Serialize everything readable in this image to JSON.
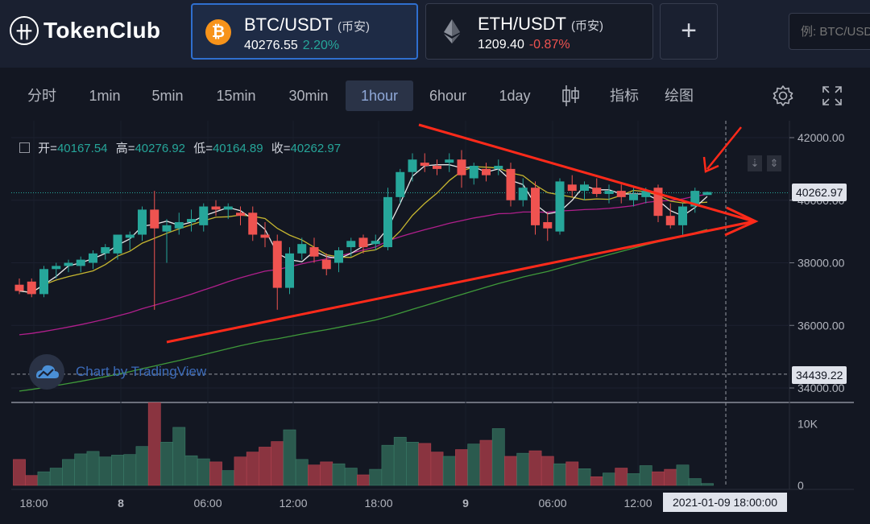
{
  "header": {
    "logo_text": "TokenClub",
    "logo_mark": "卄",
    "pairs": [
      {
        "symbol": "BTC/USDT",
        "exchange": "(币安)",
        "price": "40276.55",
        "change": "2.20%",
        "direction": "up",
        "icon": "bitcoin-icon",
        "color": "#f7931a"
      },
      {
        "symbol": "ETH/USDT",
        "exchange": "(币安)",
        "price": "1209.40",
        "change": "-0.87%",
        "direction": "down",
        "icon": "ethereum-icon"
      }
    ],
    "add_label": "+",
    "search_placeholder": "例: BTC/USDT"
  },
  "toolbar": {
    "intervals": [
      "分时",
      "1min",
      "5min",
      "15min",
      "30min",
      "1hour",
      "6hour",
      "1day"
    ],
    "active_interval": "1hour",
    "indicators_label": "指标",
    "draw_label": "绘图"
  },
  "ohlc": {
    "open_label": "开=",
    "open": "40167.54",
    "high_label": "高=",
    "high": "40276.92",
    "low_label": "低=",
    "low": "40164.89",
    "close_label": "收=",
    "close": "40262.97"
  },
  "price_axis": {
    "ticks": [
      "42000.00",
      "40000.00",
      "38000.00",
      "36000.00",
      "34000.00"
    ],
    "current": "40262.97",
    "dashed_level": "34439.22"
  },
  "volume_axis": {
    "ticks": [
      "10K",
      "0"
    ]
  },
  "time_axis": {
    "ticks": [
      "18:00",
      "8",
      "06:00",
      "12:00",
      "18:00",
      "9",
      "06:00",
      "12:00"
    ],
    "crosshair": "2021-01-09 18:00:00"
  },
  "watermark": "Chart by TradingView",
  "colors": {
    "up": "#26a69a",
    "down": "#ef5350",
    "accent": "#2f6fcf",
    "annotation": "#ff2a1a"
  },
  "chart_data": {
    "type": "candlestick",
    "ylim": [
      33500,
      42600
    ],
    "candles": [
      {
        "o": 37300,
        "h": 37500,
        "l": 37000,
        "c": 37100
      },
      {
        "o": 37400,
        "h": 37500,
        "l": 36900,
        "c": 37000
      },
      {
        "o": 37000,
        "h": 37900,
        "l": 36900,
        "c": 37800
      },
      {
        "o": 37800,
        "h": 38000,
        "l": 37500,
        "c": 37900
      },
      {
        "o": 37900,
        "h": 38100,
        "l": 37700,
        "c": 38000
      },
      {
        "o": 37900,
        "h": 38200,
        "l": 37700,
        "c": 38100
      },
      {
        "o": 38000,
        "h": 38400,
        "l": 37800,
        "c": 38300
      },
      {
        "o": 38300,
        "h": 38600,
        "l": 38100,
        "c": 38500
      },
      {
        "o": 38300,
        "h": 38900,
        "l": 38100,
        "c": 38900
      },
      {
        "o": 38800,
        "h": 39000,
        "l": 38400,
        "c": 38900
      },
      {
        "o": 38900,
        "h": 39800,
        "l": 38700,
        "c": 39700
      },
      {
        "o": 39700,
        "h": 40300,
        "l": 36500,
        "c": 39100
      },
      {
        "o": 39000,
        "h": 39400,
        "l": 38000,
        "c": 39200
      },
      {
        "o": 39100,
        "h": 39600,
        "l": 38900,
        "c": 39300
      },
      {
        "o": 39300,
        "h": 39700,
        "l": 39000,
        "c": 39400
      },
      {
        "o": 39200,
        "h": 39900,
        "l": 39000,
        "c": 39800
      },
      {
        "o": 39800,
        "h": 40000,
        "l": 39500,
        "c": 39700
      },
      {
        "o": 39700,
        "h": 39900,
        "l": 39400,
        "c": 39800
      },
      {
        "o": 39600,
        "h": 39800,
        "l": 39200,
        "c": 39500
      },
      {
        "o": 39600,
        "h": 39800,
        "l": 38700,
        "c": 38900
      },
      {
        "o": 38900,
        "h": 39300,
        "l": 38500,
        "c": 38800
      },
      {
        "o": 38700,
        "h": 38900,
        "l": 36500,
        "c": 37200
      },
      {
        "o": 37200,
        "h": 38500,
        "l": 37000,
        "c": 38300
      },
      {
        "o": 38300,
        "h": 38800,
        "l": 38100,
        "c": 38600
      },
      {
        "o": 38500,
        "h": 38800,
        "l": 38000,
        "c": 38200
      },
      {
        "o": 38100,
        "h": 38300,
        "l": 37600,
        "c": 37800
      },
      {
        "o": 38000,
        "h": 38500,
        "l": 37700,
        "c": 38400
      },
      {
        "o": 38500,
        "h": 38800,
        "l": 38200,
        "c": 38700
      },
      {
        "o": 38800,
        "h": 38900,
        "l": 38300,
        "c": 38500
      },
      {
        "o": 38600,
        "h": 38900,
        "l": 38400,
        "c": 38700
      },
      {
        "o": 38500,
        "h": 40400,
        "l": 38400,
        "c": 40100
      },
      {
        "o": 40100,
        "h": 41000,
        "l": 39900,
        "c": 40900
      },
      {
        "o": 40900,
        "h": 41500,
        "l": 40600,
        "c": 41300
      },
      {
        "o": 41200,
        "h": 41500,
        "l": 40900,
        "c": 41100
      },
      {
        "o": 41100,
        "h": 41300,
        "l": 40800,
        "c": 41000
      },
      {
        "o": 41200,
        "h": 41500,
        "l": 40900,
        "c": 41300
      },
      {
        "o": 41300,
        "h": 41600,
        "l": 40400,
        "c": 40800
      },
      {
        "o": 40700,
        "h": 41200,
        "l": 40500,
        "c": 41100
      },
      {
        "o": 41000,
        "h": 41200,
        "l": 40600,
        "c": 40800
      },
      {
        "o": 41000,
        "h": 41300,
        "l": 40800,
        "c": 41100
      },
      {
        "o": 41000,
        "h": 41200,
        "l": 39800,
        "c": 40000
      },
      {
        "o": 40000,
        "h": 40700,
        "l": 39800,
        "c": 40400
      },
      {
        "o": 40400,
        "h": 40600,
        "l": 38900,
        "c": 39200
      },
      {
        "o": 39300,
        "h": 39600,
        "l": 38700,
        "c": 39100
      },
      {
        "o": 39000,
        "h": 40700,
        "l": 38900,
        "c": 40600
      },
      {
        "o": 40500,
        "h": 40800,
        "l": 40100,
        "c": 40300
      },
      {
        "o": 40300,
        "h": 40600,
        "l": 40000,
        "c": 40500
      },
      {
        "o": 40400,
        "h": 40700,
        "l": 40100,
        "c": 40200
      },
      {
        "o": 40200,
        "h": 40500,
        "l": 39900,
        "c": 40300
      },
      {
        "o": 40300,
        "h": 40500,
        "l": 39900,
        "c": 40100
      },
      {
        "o": 40000,
        "h": 40400,
        "l": 39800,
        "c": 40200
      },
      {
        "o": 40100,
        "h": 40400,
        "l": 39900,
        "c": 40300
      },
      {
        "o": 40400,
        "h": 40500,
        "l": 39300,
        "c": 39500
      },
      {
        "o": 39500,
        "h": 39900,
        "l": 39100,
        "c": 39200
      },
      {
        "o": 39200,
        "h": 39900,
        "l": 38900,
        "c": 39800
      },
      {
        "o": 39800,
        "h": 40400,
        "l": 39600,
        "c": 40300
      },
      {
        "o": 40168,
        "h": 40277,
        "l": 40165,
        "c": 40263
      }
    ],
    "volume": [
      4200,
      1600,
      2200,
      2800,
      4200,
      5100,
      5500,
      4600,
      4900,
      5000,
      6300,
      13400,
      7000,
      9400,
      4800,
      4300,
      3800,
      2400,
      4600,
      5400,
      6200,
      7100,
      9000,
      4200,
      3300,
      3800,
      3500,
      2800,
      1700,
      2600,
      6500,
      7800,
      7000,
      6800,
      5400,
      4700,
      5800,
      6700,
      7300,
      9200,
      4700,
      5200,
      5600,
      4700,
      3500,
      3800,
      2700,
      1400,
      2000,
      2800,
      1900,
      3200,
      2200,
      2600,
      3300,
      1100,
      300
    ],
    "volume_ylim": [
      0,
      15000
    ]
  }
}
